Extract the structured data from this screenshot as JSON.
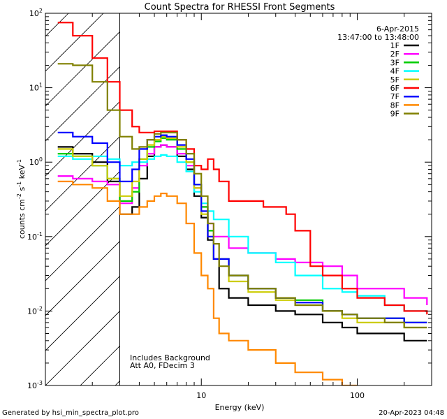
{
  "chart_data": {
    "type": "line",
    "title": "Count Spectra for RHESSI Front Segments",
    "xlabel": "Energy (keV)",
    "ylabel": "counts cm^-2 s^-1 keV^-1",
    "xscale": "log",
    "yscale": "log",
    "xlim": [
      1,
      300
    ],
    "ylim": [
      0.001,
      100
    ],
    "x_ticks": [
      {
        "value": 10,
        "label": "10"
      },
      {
        "value": 100,
        "label": "100"
      }
    ],
    "y_ticks": [
      {
        "value": 0.001,
        "base": "10",
        "exp": "-3"
      },
      {
        "value": 0.01,
        "base": "10",
        "exp": "-2"
      },
      {
        "value": 0.1,
        "base": "10",
        "exp": "-1"
      },
      {
        "value": 1,
        "base": "10",
        "exp": "0"
      },
      {
        "value": 10,
        "base": "10",
        "exp": "1"
      },
      {
        "value": 100,
        "base": "10",
        "exp": "2"
      }
    ],
    "date": "6-Apr-2015",
    "time_range": "13:47:00 to 13:48:00",
    "attenuator_threshold_kev": 3,
    "annotations": [
      "Includes Background",
      "Att A0, FDecim 3"
    ],
    "series": [
      {
        "name": "1F",
        "color": "#000000",
        "values": [
          [
            1.2,
            1.6
          ],
          [
            1.5,
            1.3
          ],
          [
            2.0,
            1.0
          ],
          [
            2.5,
            0.55
          ],
          [
            3.0,
            0.2
          ],
          [
            3.6,
            0.25
          ],
          [
            4.0,
            0.6
          ],
          [
            4.5,
            1.2
          ],
          [
            5.0,
            1.6
          ],
          [
            5.5,
            1.7
          ],
          [
            6.0,
            1.6
          ],
          [
            7.0,
            1.2
          ],
          [
            8.0,
            0.8
          ],
          [
            9.0,
            0.35
          ],
          [
            10,
            0.18
          ],
          [
            11,
            0.09
          ],
          [
            12,
            0.05
          ],
          [
            13,
            0.02
          ],
          [
            15,
            0.015
          ],
          [
            20,
            0.012
          ],
          [
            30,
            0.01
          ],
          [
            40,
            0.009
          ],
          [
            60,
            0.007
          ],
          [
            80,
            0.006
          ],
          [
            100,
            0.005
          ],
          [
            150,
            0.005
          ],
          [
            200,
            0.004
          ],
          [
            280,
            0.004
          ]
        ]
      },
      {
        "name": "2F",
        "color": "#ff00ff",
        "values": [
          [
            1.2,
            0.65
          ],
          [
            1.5,
            0.6
          ],
          [
            2.0,
            0.55
          ],
          [
            2.5,
            0.5
          ],
          [
            3.0,
            0.28
          ],
          [
            3.6,
            0.45
          ],
          [
            4.0,
            0.9
          ],
          [
            4.5,
            1.3
          ],
          [
            5.0,
            1.6
          ],
          [
            5.5,
            1.7
          ],
          [
            6.0,
            1.6
          ],
          [
            7.0,
            1.3
          ],
          [
            8.0,
            0.9
          ],
          [
            9.0,
            0.45
          ],
          [
            10,
            0.25
          ],
          [
            11,
            0.15
          ],
          [
            12,
            0.1
          ],
          [
            15,
            0.07
          ],
          [
            20,
            0.06
          ],
          [
            30,
            0.05
          ],
          [
            40,
            0.045
          ],
          [
            60,
            0.04
          ],
          [
            80,
            0.03
          ],
          [
            100,
            0.02
          ],
          [
            150,
            0.02
          ],
          [
            200,
            0.015
          ],
          [
            280,
            0.012
          ]
        ]
      },
      {
        "name": "3F",
        "color": "#00cc00",
        "values": [
          [
            1.2,
            1.3
          ],
          [
            1.5,
            1.2
          ],
          [
            2.0,
            0.9
          ],
          [
            2.5,
            0.6
          ],
          [
            3.0,
            0.3
          ],
          [
            3.6,
            0.4
          ],
          [
            4.0,
            1.1
          ],
          [
            4.5,
            1.6
          ],
          [
            5.0,
            1.9
          ],
          [
            5.5,
            2.1
          ],
          [
            6.0,
            2.0
          ],
          [
            7.0,
            1.5
          ],
          [
            8.0,
            1.0
          ],
          [
            9.0,
            0.5
          ],
          [
            10,
            0.25
          ],
          [
            11,
            0.12
          ],
          [
            12,
            0.05
          ],
          [
            15,
            0.03
          ],
          [
            20,
            0.02
          ],
          [
            30,
            0.015
          ],
          [
            40,
            0.014
          ],
          [
            60,
            0.01
          ],
          [
            80,
            0.009
          ],
          [
            100,
            0.008
          ],
          [
            150,
            0.008
          ],
          [
            200,
            0.007
          ],
          [
            280,
            0.007
          ]
        ]
      },
      {
        "name": "4F",
        "color": "#00ffff",
        "values": [
          [
            1.2,
            1.2
          ],
          [
            1.5,
            1.1
          ],
          [
            2.0,
            1.2
          ],
          [
            2.5,
            1.1
          ],
          [
            3.0,
            0.9
          ],
          [
            3.6,
            1.0
          ],
          [
            4.0,
            1.0
          ],
          [
            4.5,
            1.1
          ],
          [
            5.0,
            1.2
          ],
          [
            5.5,
            1.25
          ],
          [
            6.0,
            1.2
          ],
          [
            7.0,
            1.0
          ],
          [
            8.0,
            0.75
          ],
          [
            9.0,
            0.4
          ],
          [
            10,
            0.28
          ],
          [
            11,
            0.22
          ],
          [
            12,
            0.17
          ],
          [
            15,
            0.1
          ],
          [
            20,
            0.06
          ],
          [
            30,
            0.045
          ],
          [
            40,
            0.03
          ],
          [
            60,
            0.02
          ],
          [
            80,
            0.018
          ],
          [
            100,
            0.016
          ],
          [
            150,
            0.012
          ],
          [
            200,
            0.01
          ],
          [
            280,
            0.01
          ]
        ]
      },
      {
        "name": "5F",
        "color": "#cccc00",
        "values": [
          [
            1.2,
            1.5
          ],
          [
            1.5,
            1.2
          ],
          [
            2.0,
            0.9
          ],
          [
            2.5,
            0.6
          ],
          [
            3.0,
            0.35
          ],
          [
            3.6,
            0.55
          ],
          [
            4.0,
            1.1
          ],
          [
            4.5,
            1.7
          ],
          [
            5.0,
            2.0
          ],
          [
            5.5,
            2.2
          ],
          [
            6.0,
            2.1
          ],
          [
            7.0,
            1.6
          ],
          [
            8.0,
            1.0
          ],
          [
            9.0,
            0.45
          ],
          [
            10,
            0.2
          ],
          [
            11,
            0.1
          ],
          [
            12,
            0.05
          ],
          [
            15,
            0.025
          ],
          [
            20,
            0.018
          ],
          [
            30,
            0.014
          ],
          [
            40,
            0.012
          ],
          [
            60,
            0.01
          ],
          [
            80,
            0.008
          ],
          [
            100,
            0.007
          ],
          [
            150,
            0.007
          ],
          [
            200,
            0.006
          ],
          [
            280,
            0.006
          ]
        ]
      },
      {
        "name": "6F",
        "color": "#ff0000",
        "values": [
          [
            1.2,
            75
          ],
          [
            1.5,
            50
          ],
          [
            2.0,
            25
          ],
          [
            2.5,
            12
          ],
          [
            3.0,
            5
          ],
          [
            3.6,
            3
          ],
          [
            4.0,
            2.5
          ],
          [
            4.5,
            2.5
          ],
          [
            5.0,
            2.6
          ],
          [
            5.5,
            2.6
          ],
          [
            6.0,
            2.6
          ],
          [
            7.0,
            2.0
          ],
          [
            8.0,
            1.5
          ],
          [
            9.0,
            0.9
          ],
          [
            10,
            0.8
          ],
          [
            11,
            1.1
          ],
          [
            12,
            0.8
          ],
          [
            13,
            0.55
          ],
          [
            15,
            0.3
          ],
          [
            20,
            0.3
          ],
          [
            25,
            0.25
          ],
          [
            30,
            0.25
          ],
          [
            35,
            0.2
          ],
          [
            40,
            0.12
          ],
          [
            45,
            0.12
          ],
          [
            50,
            0.04
          ],
          [
            60,
            0.03
          ],
          [
            80,
            0.02
          ],
          [
            100,
            0.015
          ],
          [
            150,
            0.012
          ],
          [
            200,
            0.01
          ],
          [
            280,
            0.009
          ]
        ]
      },
      {
        "name": "7F",
        "color": "#0000ff",
        "values": [
          [
            1.2,
            2.5
          ],
          [
            1.5,
            2.2
          ],
          [
            2.0,
            1.8
          ],
          [
            2.5,
            1.0
          ],
          [
            3.0,
            0.55
          ],
          [
            3.6,
            0.8
          ],
          [
            4.0,
            1.5
          ],
          [
            4.5,
            2.0
          ],
          [
            5.0,
            2.2
          ],
          [
            5.5,
            2.3
          ],
          [
            6.0,
            2.2
          ],
          [
            7.0,
            1.7
          ],
          [
            8.0,
            1.1
          ],
          [
            9.0,
            0.5
          ],
          [
            10,
            0.22
          ],
          [
            11,
            0.1
          ],
          [
            12,
            0.05
          ],
          [
            15,
            0.03
          ],
          [
            20,
            0.02
          ],
          [
            30,
            0.015
          ],
          [
            40,
            0.013
          ],
          [
            60,
            0.01
          ],
          [
            80,
            0.009
          ],
          [
            100,
            0.008
          ],
          [
            150,
            0.008
          ],
          [
            200,
            0.007
          ],
          [
            280,
            0.007
          ]
        ]
      },
      {
        "name": "8F",
        "color": "#ff8800",
        "values": [
          [
            1.2,
            0.55
          ],
          [
            1.5,
            0.5
          ],
          [
            2.0,
            0.45
          ],
          [
            2.5,
            0.3
          ],
          [
            3.0,
            0.2
          ],
          [
            3.6,
            0.2
          ],
          [
            4.0,
            0.25
          ],
          [
            4.5,
            0.3
          ],
          [
            5.0,
            0.35
          ],
          [
            5.5,
            0.38
          ],
          [
            6.0,
            0.35
          ],
          [
            7.0,
            0.28
          ],
          [
            8.0,
            0.15
          ],
          [
            9.0,
            0.06
          ],
          [
            10,
            0.03
          ],
          [
            11,
            0.02
          ],
          [
            12,
            0.008
          ],
          [
            13,
            0.005
          ],
          [
            15,
            0.004
          ],
          [
            20,
            0.003
          ],
          [
            30,
            0.002
          ],
          [
            40,
            0.0015
          ],
          [
            60,
            0.0012
          ],
          [
            80,
            0.001
          ],
          [
            100,
            0.001
          ]
        ]
      },
      {
        "name": "9F",
        "color": "#808000",
        "values": [
          [
            1.2,
            21
          ],
          [
            1.5,
            20
          ],
          [
            2.0,
            12
          ],
          [
            2.5,
            5
          ],
          [
            3.0,
            2.2
          ],
          [
            3.6,
            1.5
          ],
          [
            4.0,
            1.6
          ],
          [
            4.5,
            2.0
          ],
          [
            5.0,
            2.4
          ],
          [
            5.5,
            2.5
          ],
          [
            6.0,
            2.5
          ],
          [
            7.0,
            2.0
          ],
          [
            8.0,
            1.3
          ],
          [
            9.0,
            0.7
          ],
          [
            10,
            0.35
          ],
          [
            11,
            0.15
          ],
          [
            12,
            0.08
          ],
          [
            13,
            0.04
          ],
          [
            15,
            0.03
          ],
          [
            20,
            0.02
          ],
          [
            30,
            0.015
          ],
          [
            40,
            0.012
          ],
          [
            60,
            0.01
          ],
          [
            80,
            0.009
          ],
          [
            100,
            0.008
          ],
          [
            150,
            0.007
          ],
          [
            200,
            0.006
          ],
          [
            280,
            0.006
          ]
        ]
      }
    ]
  },
  "footer": {
    "generated_by": "Generated by hsi_min_spectra_plot.pro",
    "timestamp": "20-Apr-2023 04:48"
  }
}
